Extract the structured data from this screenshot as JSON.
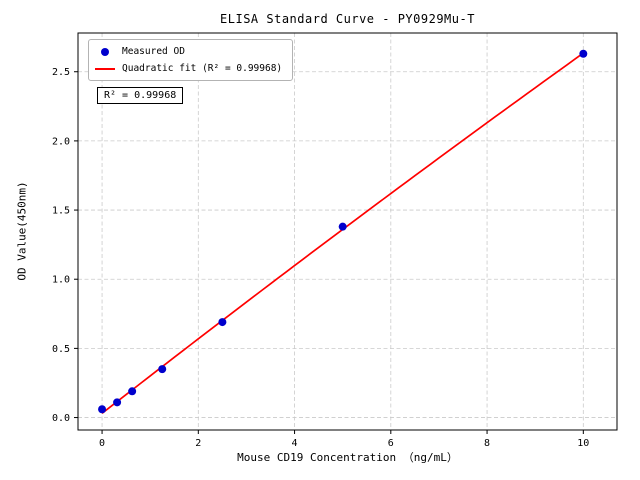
{
  "figure": {
    "background": "#ffffff"
  },
  "chart_data": {
    "type": "scatter",
    "title": "ELISA Standard Curve - PY0929Mu-T",
    "xlabel": "Mouse CD19 Concentration （ng/mL）",
    "ylabel": "OD Value(450nm)",
    "xlim": [
      -0.5,
      10.7
    ],
    "ylim": [
      -0.09,
      2.78
    ],
    "xticks": [
      0,
      2,
      4,
      6,
      8,
      10
    ],
    "xtick_labels": [
      "0",
      "2",
      "4",
      "6",
      "8",
      "10"
    ],
    "yticks": [
      0.0,
      0.5,
      1.0,
      1.5,
      2.0,
      2.5
    ],
    "ytick_labels": [
      "0.0",
      "0.5",
      "1.0",
      "1.5",
      "2.0",
      "2.5"
    ],
    "grid": true,
    "grid_style": "dashed",
    "grid_color": "#cacaca",
    "axis_color": "#000000",
    "legend_position": "upper-left",
    "series": [
      {
        "name": "Measured OD",
        "type": "scatter",
        "marker": "circle",
        "color": "#0000cd",
        "x": [
          0,
          0.3125,
          0.625,
          1.25,
          2.5,
          5,
          10
        ],
        "y": [
          0.06,
          0.11,
          0.19,
          0.35,
          0.69,
          1.38,
          2.63
        ]
      },
      {
        "name": "Quadratic fit (R² = 0.99968)",
        "type": "line",
        "color": "#ff0000",
        "fit": {
          "kind": "quadratic",
          "coefficients": [
            -0.0011,
            0.2714,
            0.0306
          ],
          "x_range": [
            0,
            10
          ]
        }
      }
    ],
    "annotation": {
      "text": "R² = 0.99968"
    },
    "r_squared": 0.99968
  }
}
